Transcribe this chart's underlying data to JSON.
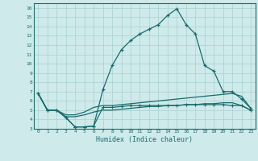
{
  "xlabel": "Humidex (Indice chaleur)",
  "bg_color": "#ceeaea",
  "grid_color": "#aacfcf",
  "line_color": "#1a6b6b",
  "xlim": [
    -0.5,
    23.5
  ],
  "ylim": [
    3,
    16.5
  ],
  "xticks": [
    0,
    1,
    2,
    3,
    4,
    5,
    6,
    7,
    8,
    9,
    10,
    11,
    12,
    13,
    14,
    15,
    16,
    17,
    18,
    19,
    20,
    21,
    22,
    23
  ],
  "yticks": [
    3,
    4,
    5,
    6,
    7,
    8,
    9,
    10,
    11,
    12,
    13,
    14,
    15,
    16
  ],
  "curve1_x": [
    0,
    1,
    2,
    3,
    4,
    5,
    6,
    7,
    8,
    9,
    10,
    11,
    12,
    13,
    14,
    15,
    16,
    17,
    18,
    19,
    20,
    21,
    22,
    23
  ],
  "curve1_y": [
    6.8,
    5.0,
    5.0,
    4.2,
    3.2,
    3.2,
    3.3,
    7.2,
    9.8,
    11.5,
    12.5,
    13.2,
    13.7,
    14.2,
    15.2,
    15.9,
    14.2,
    13.2,
    9.8,
    9.2,
    7.0,
    7.0,
    6.2,
    5.2
  ],
  "curve2_x": [
    0,
    1,
    2,
    3,
    4,
    5,
    6,
    7,
    8,
    9,
    10,
    11,
    12,
    13,
    14,
    15,
    16,
    17,
    18,
    19,
    20,
    21,
    22,
    23
  ],
  "curve2_y": [
    6.8,
    5.0,
    5.0,
    4.5,
    4.5,
    4.8,
    5.3,
    5.5,
    5.5,
    5.6,
    5.7,
    5.8,
    5.9,
    6.0,
    6.1,
    6.2,
    6.3,
    6.4,
    6.5,
    6.6,
    6.7,
    6.8,
    6.5,
    5.2
  ],
  "curve3_x": [
    0,
    1,
    2,
    3,
    4,
    5,
    6,
    7,
    8,
    9,
    10,
    11,
    12,
    13,
    14,
    15,
    16,
    17,
    18,
    19,
    20,
    21,
    22,
    23
  ],
  "curve3_y": [
    6.8,
    5.0,
    5.0,
    4.3,
    4.3,
    4.5,
    4.8,
    5.0,
    5.0,
    5.1,
    5.2,
    5.3,
    5.4,
    5.4,
    5.5,
    5.5,
    5.6,
    5.6,
    5.7,
    5.7,
    5.8,
    5.8,
    5.5,
    5.0
  ],
  "curve4_x": [
    0,
    1,
    2,
    3,
    4,
    5,
    6,
    7,
    8,
    9,
    10,
    11,
    12,
    13,
    14,
    15,
    16,
    17,
    18,
    19,
    20,
    21,
    22,
    23
  ],
  "curve4_y": [
    6.8,
    5.0,
    5.0,
    4.2,
    3.2,
    3.2,
    3.3,
    5.3,
    5.3,
    5.4,
    5.5,
    5.5,
    5.5,
    5.5,
    5.5,
    5.5,
    5.6,
    5.6,
    5.6,
    5.6,
    5.6,
    5.5,
    5.5,
    5.0
  ]
}
